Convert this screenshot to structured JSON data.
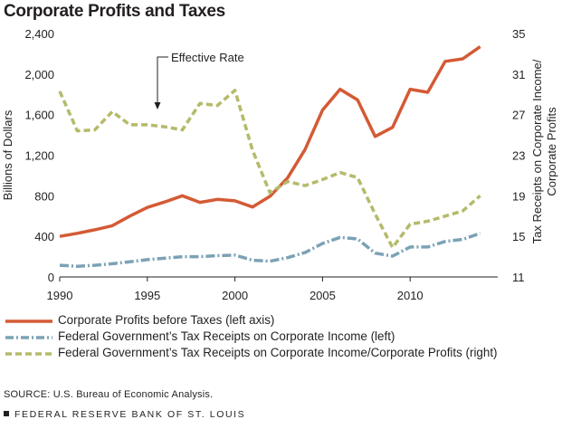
{
  "title": "Corporate Profits and Taxes",
  "annotation": "Effective Rate",
  "colors": {
    "profits": "#d45a35",
    "receipts": "#7ba2b5",
    "rate": "#b5ba6a",
    "text": "#231f20"
  },
  "legend": [
    {
      "label": "Corporate Profits before Taxes (left axis)",
      "series": "profits"
    },
    {
      "label": "Federal Government’s Tax Receipts on Corporate Income (left)",
      "series": "receipts"
    },
    {
      "label": "Federal Government’s Tax Receipts on Corporate Income/Corporate Profits (right)",
      "series": "rate"
    }
  ],
  "source": "SOURCE: U.S. Bureau of Economic Analysis.",
  "footer": "FEDERAL RESERVE BANK OF ST. LOUIS",
  "chart_data": {
    "type": "line",
    "title": "Corporate Profits and Taxes",
    "ylabel_left": "Billions of Dollars",
    "ylabel_right_lines": [
      "Tax Receipts on Corporate Income/",
      "Corporate Profits"
    ],
    "x": [
      1990,
      1991,
      1992,
      1993,
      1994,
      1995,
      1996,
      1997,
      1998,
      1999,
      2000,
      2001,
      2002,
      2003,
      2004,
      2005,
      2006,
      2007,
      2008,
      2009,
      2010,
      2011,
      2012,
      2013,
      2014
    ],
    "xlim": [
      1990,
      2015
    ],
    "xticks": [
      "1990",
      "1995",
      "2000",
      "2005",
      "2010"
    ],
    "ylim_left": [
      0,
      2400
    ],
    "yticks_left": [
      "0",
      "400",
      "800",
      "1,200",
      "1,600",
      "2,000",
      "2,400"
    ],
    "ylim_right": [
      11,
      35
    ],
    "yticks_right": [
      "11",
      "15",
      "19",
      "23",
      "27",
      "31",
      "35"
    ],
    "grid": false,
    "series": [
      {
        "name": "Corporate Profits before Taxes (left axis)",
        "axis": "left",
        "style": "solid",
        "values": [
          400,
          430,
          465,
          505,
          600,
          685,
          740,
          800,
          735,
          765,
          750,
          690,
          795,
          975,
          1255,
          1645,
          1850,
          1745,
          1385,
          1475,
          1850,
          1820,
          2125,
          2150,
          2270
        ]
      },
      {
        "name": "Federal Government’s Tax Receipts on Corporate Income (left)",
        "axis": "left",
        "style": "dashdot",
        "values": [
          115,
          105,
          115,
          130,
          150,
          170,
          185,
          200,
          200,
          210,
          215,
          165,
          155,
          190,
          240,
          330,
          390,
          375,
          235,
          205,
          295,
          295,
          350,
          370,
          430
        ]
      },
      {
        "name": "Federal Government’s Tax Receipts on Corporate Income/Corporate Profits (right)",
        "axis": "right",
        "style": "dashed",
        "values": [
          29.3,
          25.4,
          25.5,
          27.3,
          26.0,
          26.0,
          25.8,
          25.5,
          28.1,
          27.9,
          29.4,
          23.5,
          19.3,
          20.4,
          20.0,
          20.6,
          21.3,
          20.8,
          17.2,
          13.9,
          16.2,
          16.5,
          17.0,
          17.5,
          19.0
        ]
      }
    ]
  }
}
